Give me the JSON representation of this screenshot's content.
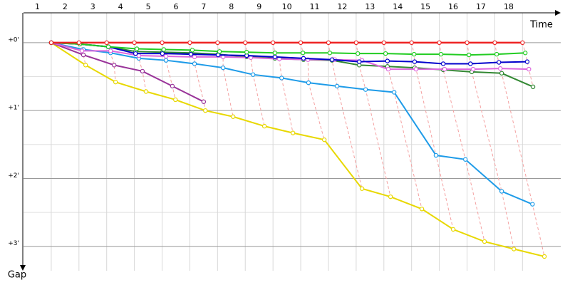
{
  "chart_data": {
    "type": "line",
    "x_label": "Time",
    "y_label": "Gap",
    "xlim": [
      0,
      19.38
    ],
    "ylim": [
      -0.44,
      3.36
    ],
    "y_inverted": true,
    "grid": true,
    "xticks": [
      1,
      2,
      3,
      4,
      5,
      6,
      7,
      8,
      9,
      10,
      11,
      12,
      13,
      14,
      15,
      16,
      17,
      18
    ],
    "yticks": [
      {
        "value": 0,
        "label": "+0'"
      },
      {
        "value": 1,
        "label": "+1'"
      },
      {
        "value": 2,
        "label": "+2'"
      },
      {
        "value": 3,
        "label": "+3'"
      }
    ],
    "minor_yticks": [
      0.5,
      1.5,
      2.5
    ],
    "series": [
      {
        "color": "#e8d800",
        "x": [
          1,
          2.24,
          3.32,
          4.42,
          5.48,
          6.56,
          7.56,
          8.69,
          9.72,
          10.85,
          12.21,
          13.24,
          14.37,
          15.5,
          16.63,
          17.69,
          18.79
        ],
        "values": [
          0,
          0.33,
          0.58,
          0.72,
          0.84,
          1.0,
          1.09,
          1.23,
          1.33,
          1.43,
          2.15,
          2.27,
          2.45,
          2.75,
          2.93,
          3.04,
          3.15
        ]
      },
      {
        "color": "#1e9be8",
        "x": [
          1,
          2.16,
          3.14,
          4.16,
          5.14,
          6.17,
          7.2,
          8.28,
          9.31,
          10.28,
          11.31,
          12.34,
          13.37,
          14.88,
          15.94,
          17.25,
          18.36
        ],
        "values": [
          0,
          0.1,
          0.15,
          0.23,
          0.26,
          0.31,
          0.37,
          0.47,
          0.52,
          0.59,
          0.64,
          0.69,
          0.73,
          1.66,
          1.72,
          2.19,
          2.38
        ]
      },
      {
        "color": "#993399",
        "x": [
          1,
          2.16,
          3.27,
          4.29,
          5.37,
          6.5
        ],
        "values": [
          0,
          0.18,
          0.33,
          0.42,
          0.64,
          0.87
        ]
      },
      {
        "color": "#338833",
        "x": [
          1,
          2.03,
          3.06,
          4.04,
          5.01,
          6.04,
          7.02,
          8.05,
          9.07,
          10.1,
          11.13,
          12.11,
          13.13,
          14.11,
          15.14,
          16.17,
          17.25,
          18.38
        ],
        "values": [
          0,
          0.02,
          0.06,
          0.13,
          0.14,
          0.15,
          0.17,
          0.21,
          0.23,
          0.25,
          0.26,
          0.33,
          0.35,
          0.37,
          0.4,
          0.43,
          0.45,
          0.65
        ]
      },
      {
        "color": "#dd66dd",
        "x": [
          1,
          2.11,
          3.14,
          4.16,
          5.14,
          6.17,
          7.2,
          8.2,
          9.23,
          10.26,
          11.23,
          12.21,
          13.16,
          14.16,
          15.19,
          16.22,
          17.2,
          18.23
        ],
        "values": [
          0,
          0.12,
          0.12,
          0.19,
          0.2,
          0.21,
          0.21,
          0.22,
          0.24,
          0.25,
          0.25,
          0.26,
          0.39,
          0.39,
          0.39,
          0.39,
          0.38,
          0.39
        ]
      },
      {
        "color": "#0000cc",
        "x": [
          1,
          2.03,
          3.06,
          4.04,
          5.01,
          6.04,
          7.02,
          8.05,
          9.07,
          10.1,
          11.13,
          12.11,
          13.13,
          14.11,
          15.14,
          16.12,
          17.15,
          18.17
        ],
        "values": [
          0,
          0.02,
          0.06,
          0.16,
          0.16,
          0.17,
          0.18,
          0.19,
          0.21,
          0.23,
          0.25,
          0.28,
          0.27,
          0.28,
          0.31,
          0.31,
          0.29,
          0.28
        ]
      },
      {
        "color": "#22cc22",
        "x": [
          1,
          2.03,
          3.06,
          4.09,
          5.06,
          6.09,
          7.07,
          8.05,
          9.07,
          10.08,
          11.05,
          12.06,
          13.06,
          14.09,
          15.06,
          16.07,
          17.07,
          18.1
        ],
        "values": [
          0,
          0.02,
          0.06,
          0.09,
          0.1,
          0.11,
          0.13,
          0.14,
          0.15,
          0.15,
          0.15,
          0.16,
          0.16,
          0.17,
          0.17,
          0.18,
          0.17,
          0.15
        ]
      },
      {
        "color": "#ee2222",
        "x": [
          1,
          2,
          3,
          4,
          5,
          6,
          7,
          8,
          9,
          10,
          11,
          12,
          13,
          14,
          15,
          16,
          17,
          18
        ],
        "values": [
          0,
          0,
          0,
          0,
          0,
          0,
          0,
          0,
          0,
          0,
          0,
          0,
          0,
          0,
          0,
          0,
          0,
          0
        ]
      }
    ]
  }
}
